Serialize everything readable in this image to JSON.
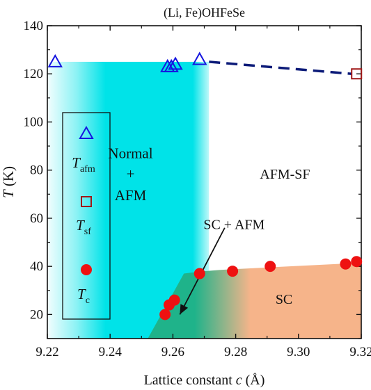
{
  "chart_data": {
    "type": "scatter",
    "title": "(Li, Fe)OHFeSe",
    "xlabel": {
      "main": "Lattice constant ",
      "var": "c",
      "unit": " (Å)"
    },
    "ylabel": {
      "var": "T",
      "unit": " (K)"
    },
    "xlim": [
      9.22,
      9.32
    ],
    "ylim": [
      10,
      140
    ],
    "x_ticks": [
      9.22,
      9.24,
      9.26,
      9.28,
      9.3,
      9.32
    ],
    "x_tick_labels": [
      "9.22",
      "9.24",
      "9.26",
      "9.28",
      "9.30",
      "9.32"
    ],
    "y_ticks": [
      20,
      40,
      60,
      80,
      100,
      120,
      140
    ],
    "y_tick_labels": [
      "20",
      "40",
      "60",
      "80",
      "100",
      "120",
      "140"
    ],
    "grid": false,
    "legend_position": "left",
    "legend": [
      {
        "base": "T",
        "sub": "afm",
        "marker": "triangle",
        "color": "#1515e0"
      },
      {
        "base": "T",
        "sub": "sf",
        "marker": "square",
        "color": "#a01818"
      },
      {
        "base": "T",
        "sub": "c",
        "marker": "circle",
        "color": "#ee1111"
      }
    ],
    "series": [
      {
        "marker": "triangle",
        "color": "#1515e0",
        "x": [
          9.2225,
          9.2583,
          9.2595,
          9.2608,
          9.2685
        ],
        "y": [
          125,
          123,
          123,
          124,
          126
        ]
      },
      {
        "marker": "square",
        "color": "#a01818",
        "x": [
          9.3185
        ],
        "y": [
          120
        ]
      },
      {
        "marker": "circle",
        "color": "#ee1111",
        "x": [
          9.2575,
          9.2588,
          9.2605,
          9.2685,
          9.279,
          9.291,
          9.315,
          9.3185
        ],
        "y": [
          20,
          24,
          26,
          37,
          38,
          40,
          41,
          42
        ]
      }
    ],
    "dashed_line": {
      "color": "#0b1a78",
      "x": [
        9.2715,
        9.317
      ],
      "y": [
        125,
        120
      ]
    },
    "regions": [
      {
        "label": "Normal + AFM",
        "lines": [
          "Normal",
          "+",
          "AFM"
        ],
        "color": "#00e3e8"
      },
      {
        "label": "AFM-SF",
        "lines": [
          "AFM-SF"
        ]
      },
      {
        "label": "SC",
        "lines": [
          "SC"
        ],
        "color": "#f6b48a"
      },
      {
        "label": "SC + AFM",
        "lines": [
          "SC + AFM"
        ],
        "color": "#1fb38a"
      }
    ]
  }
}
